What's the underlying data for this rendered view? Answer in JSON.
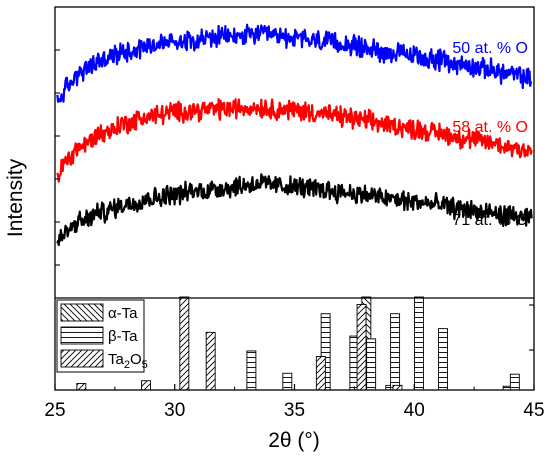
{
  "chart_data": {
    "type": "line",
    "xlabel": "2θ (°)",
    "ylabel": "Intensity",
    "xlim": [
      25,
      45
    ],
    "x_ticks": [
      25,
      30,
      35,
      40,
      45
    ],
    "series": [
      {
        "name": "50 at. % O",
        "color": "#0000ff",
        "x": [
          25.1,
          25.5,
          26,
          27,
          28,
          29,
          30,
          31,
          32,
          33,
          33.5,
          34,
          35,
          36,
          37,
          38,
          39,
          40,
          41,
          42,
          43,
          44,
          44.9
        ],
        "y": [
          2.63,
          2.78,
          2.92,
          3.05,
          3.14,
          3.2,
          3.24,
          3.26,
          3.28,
          3.29,
          3.31,
          3.29,
          3.27,
          3.24,
          3.21,
          3.17,
          3.12,
          3.09,
          3.05,
          3.0,
          2.96,
          2.91,
          2.86
        ]
      },
      {
        "name": "58 at. % O",
        "color": "#ff0000",
        "x": [
          25.1,
          25.5,
          26,
          27,
          28,
          29,
          30,
          31,
          32,
          33,
          33.5,
          34,
          35,
          36,
          37,
          38,
          39,
          40,
          41,
          42,
          43,
          44,
          44.9
        ],
        "y": [
          1.9,
          2.05,
          2.18,
          2.32,
          2.42,
          2.49,
          2.53,
          2.55,
          2.56,
          2.57,
          2.58,
          2.56,
          2.55,
          2.52,
          2.48,
          2.44,
          2.4,
          2.36,
          2.32,
          2.27,
          2.23,
          2.18,
          2.15
        ]
      },
      {
        "name": "71 at. % O",
        "color": "#000000",
        "x": [
          25.1,
          25.5,
          26,
          27,
          28,
          29,
          30,
          31,
          32,
          33,
          33.5,
          34,
          35,
          36,
          37,
          38,
          39,
          40,
          41,
          42,
          43,
          44,
          44.9
        ],
        "y": [
          1.23,
          1.33,
          1.43,
          1.53,
          1.61,
          1.67,
          1.71,
          1.74,
          1.77,
          1.8,
          1.82,
          1.8,
          1.78,
          1.76,
          1.73,
          1.7,
          1.66,
          1.63,
          1.6,
          1.56,
          1.52,
          1.49,
          1.46
        ]
      }
    ],
    "reference_patterns": [
      {
        "name": "α-Ta",
        "pattern": "backslash-hatch",
        "peaks": [
          {
            "x": 38.0,
            "intensity": 1.0
          }
        ]
      },
      {
        "name": "β-Ta",
        "pattern": "horizontal-lines",
        "peaks": [
          {
            "x": 33.2,
            "intensity": 0.42
          },
          {
            "x": 34.7,
            "intensity": 0.18
          },
          {
            "x": 36.3,
            "intensity": 0.82
          },
          {
            "x": 37.5,
            "intensity": 0.58
          },
          {
            "x": 38.2,
            "intensity": 0.55
          },
          {
            "x": 39.0,
            "intensity": 0.05
          },
          {
            "x": 39.2,
            "intensity": 0.82
          },
          {
            "x": 40.2,
            "intensity": 1.0
          },
          {
            "x": 41.2,
            "intensity": 0.66
          },
          {
            "x": 43.9,
            "intensity": 0.04
          },
          {
            "x": 44.2,
            "intensity": 0.17
          }
        ]
      },
      {
        "name": "Ta2O5",
        "name_display": {
          "main": "Ta",
          "sub": "2",
          "rest": "O",
          "sub2": "5"
        },
        "pattern": "forward-slash-hatch",
        "peaks": [
          {
            "x": 26.1,
            "intensity": 0.07
          },
          {
            "x": 28.8,
            "intensity": 0.1
          },
          {
            "x": 30.4,
            "intensity": 1.0
          },
          {
            "x": 31.5,
            "intensity": 0.62
          },
          {
            "x": 36.1,
            "intensity": 0.36
          },
          {
            "x": 37.8,
            "intensity": 0.92
          },
          {
            "x": 39.3,
            "intensity": 0.05
          }
        ]
      }
    ],
    "grid": false,
    "legend_position": "bottom-left"
  }
}
